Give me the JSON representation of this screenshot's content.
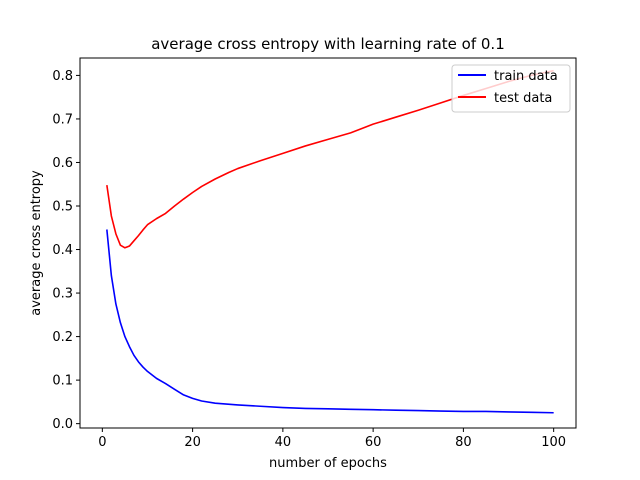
{
  "chart_data": {
    "type": "line",
    "title": "average cross entropy with learning rate of 0.1",
    "xlabel": "number of epochs",
    "ylabel": "average cross entropy",
    "xlim": [
      -4.95,
      104.95
    ],
    "ylim": [
      -0.01,
      0.84
    ],
    "xticks": [
      0,
      20,
      40,
      60,
      80,
      100
    ],
    "yticks": [
      0.0,
      0.1,
      0.2,
      0.3,
      0.4,
      0.5,
      0.6,
      0.7,
      0.8
    ],
    "grid": false,
    "legend_position": "top-right",
    "series": [
      {
        "name": "train data",
        "color": "#0000ff",
        "points": [
          [
            1,
            0.446
          ],
          [
            2,
            0.34
          ],
          [
            3,
            0.275
          ],
          [
            4,
            0.232
          ],
          [
            5,
            0.2
          ],
          [
            6,
            0.177
          ],
          [
            7,
            0.157
          ],
          [
            8,
            0.142
          ],
          [
            9,
            0.13
          ],
          [
            10,
            0.12
          ],
          [
            12,
            0.104
          ],
          [
            14,
            0.092
          ],
          [
            16,
            0.079
          ],
          [
            18,
            0.066
          ],
          [
            20,
            0.058
          ],
          [
            22,
            0.052
          ],
          [
            25,
            0.047
          ],
          [
            30,
            0.043
          ],
          [
            35,
            0.04
          ],
          [
            40,
            0.037
          ],
          [
            45,
            0.035
          ],
          [
            50,
            0.034
          ],
          [
            55,
            0.033
          ],
          [
            60,
            0.032
          ],
          [
            65,
            0.031
          ],
          [
            70,
            0.03
          ],
          [
            75,
            0.029
          ],
          [
            80,
            0.028
          ],
          [
            85,
            0.028
          ],
          [
            90,
            0.027
          ],
          [
            95,
            0.026
          ],
          [
            100,
            0.025
          ]
        ]
      },
      {
        "name": "test data",
        "color": "#ff0000",
        "points": [
          [
            1,
            0.548
          ],
          [
            2,
            0.477
          ],
          [
            3,
            0.436
          ],
          [
            4,
            0.41
          ],
          [
            5,
            0.404
          ],
          [
            6,
            0.408
          ],
          [
            7,
            0.42
          ],
          [
            8,
            0.432
          ],
          [
            9,
            0.445
          ],
          [
            10,
            0.457
          ],
          [
            12,
            0.471
          ],
          [
            14,
            0.483
          ],
          [
            16,
            0.5
          ],
          [
            18,
            0.516
          ],
          [
            20,
            0.531
          ],
          [
            22,
            0.545
          ],
          [
            25,
            0.562
          ],
          [
            28,
            0.577
          ],
          [
            30,
            0.586
          ],
          [
            35,
            0.604
          ],
          [
            40,
            0.621
          ],
          [
            45,
            0.638
          ],
          [
            50,
            0.653
          ],
          [
            55,
            0.668
          ],
          [
            60,
            0.688
          ],
          [
            65,
            0.704
          ],
          [
            70,
            0.72
          ],
          [
            75,
            0.737
          ],
          [
            80,
            0.754
          ],
          [
            85,
            0.77
          ],
          [
            90,
            0.786
          ],
          [
            95,
            0.8
          ],
          [
            100,
            0.811
          ]
        ]
      }
    ]
  }
}
